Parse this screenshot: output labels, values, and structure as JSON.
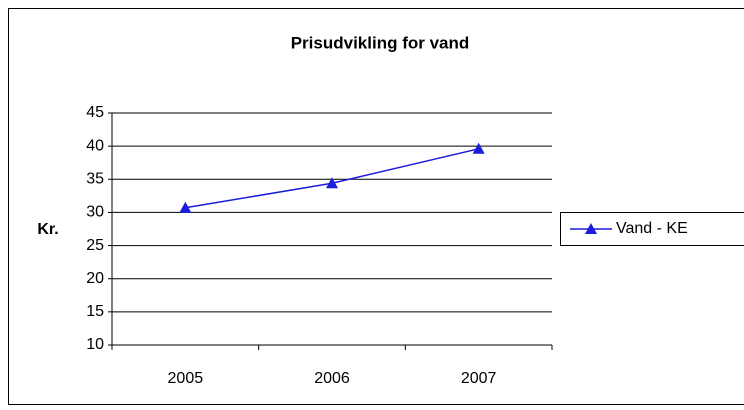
{
  "chart_data": {
    "type": "line",
    "title": "Prisudvikling for vand",
    "y_label": "Kr.",
    "categories": [
      "2005",
      "2006",
      "2007"
    ],
    "series": [
      {
        "name": "Vand - KE",
        "color": "#1c1cdc",
        "values": [
          30.7,
          34.4,
          39.6
        ]
      }
    ],
    "ylim": [
      10,
      45
    ],
    "yticks": [
      10,
      15,
      20,
      25,
      30,
      35,
      40,
      45
    ],
    "grid": true,
    "legend": "right"
  }
}
